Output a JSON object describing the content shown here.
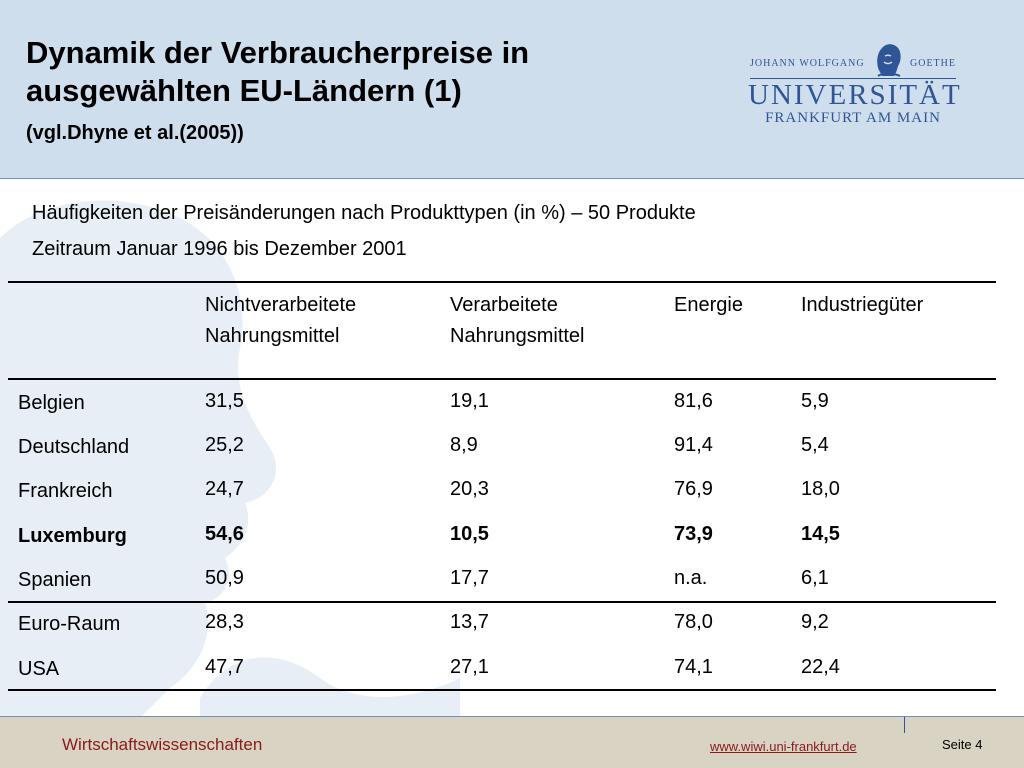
{
  "header": {
    "title_line1": "Dynamik der Verbraucherpreise in",
    "title_line2": "ausgewählten EU-Ländern (1)",
    "subtitle": "(vgl.Dhyne et al.(2005))"
  },
  "logo": {
    "top_left": "JOHANN WOLFGANG",
    "top_right": "GOETHE",
    "university": "UNIVERSITÄT",
    "city": "FRANKFURT AM MAIN"
  },
  "intro": {
    "line1": "Häufigkeiten der Preisänderungen nach Produkttypen (in %) – 50 Produkte",
    "line2": "Zeitraum Januar 1996 bis Dezember 2001"
  },
  "table": {
    "columns": [
      {
        "line1": "Nichtverarbeitete",
        "line2": "Nahrungsmittel"
      },
      {
        "line1": "Verarbeitete",
        "line2": "Nahrungsmittel"
      },
      {
        "line1": "Energie",
        "line2": ""
      },
      {
        "line1": "Industriegüter",
        "line2": ""
      }
    ],
    "rows": [
      {
        "country": "Belgien",
        "values": [
          "31,5",
          "19,1",
          "81,6",
          "5,9"
        ],
        "bold": false
      },
      {
        "country": "Deutschland",
        "values": [
          "25,2",
          "8,9",
          "91,4",
          "5,4"
        ],
        "bold": false
      },
      {
        "country": "Frankreich",
        "values": [
          "24,7",
          "20,3",
          "76,9",
          "18,0"
        ],
        "bold": false
      },
      {
        "country": "Luxemburg",
        "values": [
          "54,6",
          "10,5",
          "73,9",
          "14,5"
        ],
        "bold": true
      },
      {
        "country": "Spanien",
        "values": [
          "50,9",
          "17,7",
          "n.a.",
          "6,1"
        ],
        "bold": false
      },
      {
        "country": "Euro-Raum",
        "values": [
          "28,3",
          "13,7",
          "78,0",
          "9,2"
        ],
        "bold": false
      },
      {
        "country": "USA",
        "values": [
          "47,7",
          "27,1",
          "74,1",
          "22,4"
        ],
        "bold": false
      }
    ]
  },
  "footer": {
    "department": "Wirtschaftswissenschaften",
    "url": "www.wiwi.uni-frankfurt.de",
    "page": "Seite 4"
  },
  "colors": {
    "header_bg": "#cfdeec",
    "footer_bg": "#d8d3c3",
    "logo_blue": "#2f5597",
    "footer_red": "#8b1a1a"
  }
}
